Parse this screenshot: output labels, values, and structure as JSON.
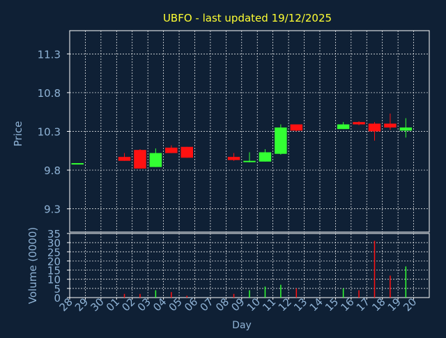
{
  "colors": {
    "background": "#0f2035",
    "title": "#ffff33",
    "axis_text": "#8fb3d6",
    "grid": "#ffffff",
    "up": "#33ff33",
    "down": "#ff1111"
  },
  "chart_data": [
    {
      "type": "candlestick",
      "title": "UBFO - last updated 19/12/2025",
      "ylabel": "Price",
      "ylim": [
        9.0,
        11.6
      ],
      "yticks": [
        "11.3",
        "10.8",
        "10.3",
        "9.8",
        "9.3"
      ],
      "ytick_values": [
        11.3,
        10.8,
        10.3,
        9.8,
        9.3
      ],
      "grid": true,
      "x": [
        "28",
        "29",
        "30",
        "01",
        "02",
        "03",
        "04",
        "05",
        "06",
        "07",
        "08",
        "09",
        "10",
        "11",
        "12",
        "13",
        "14",
        "15",
        "16",
        "17",
        "18",
        "19",
        "20"
      ],
      "candles": [
        {
          "day": "28",
          "open": 9.89,
          "high": 9.89,
          "low": 9.89,
          "close": 9.89,
          "dir": "up"
        },
        {
          "day": "01",
          "open": 9.97,
          "high": 10.02,
          "low": 9.92,
          "close": 9.92,
          "dir": "down"
        },
        {
          "day": "02",
          "open": 10.06,
          "high": 10.07,
          "low": 9.82,
          "close": 9.82,
          "dir": "down"
        },
        {
          "day": "03",
          "open": 9.84,
          "high": 10.08,
          "low": 9.84,
          "close": 10.02,
          "dir": "up"
        },
        {
          "day": "04",
          "open": 10.09,
          "high": 10.12,
          "low": 10.02,
          "close": 10.02,
          "dir": "down"
        },
        {
          "day": "05",
          "open": 10.1,
          "high": 10.1,
          "low": 9.96,
          "close": 9.96,
          "dir": "down"
        },
        {
          "day": "08",
          "open": 9.97,
          "high": 10.02,
          "low": 9.92,
          "close": 9.93,
          "dir": "down"
        },
        {
          "day": "09",
          "open": 9.91,
          "high": 10.03,
          "low": 9.9,
          "close": 9.92,
          "dir": "up"
        },
        {
          "day": "10",
          "open": 9.91,
          "high": 10.07,
          "low": 9.91,
          "close": 10.03,
          "dir": "up"
        },
        {
          "day": "11",
          "open": 10.01,
          "high": 10.39,
          "low": 10.0,
          "close": 10.35,
          "dir": "up"
        },
        {
          "day": "12",
          "open": 10.39,
          "high": 10.39,
          "low": 10.3,
          "close": 10.31,
          "dir": "down"
        },
        {
          "day": "15",
          "open": 10.33,
          "high": 10.42,
          "low": 10.33,
          "close": 10.39,
          "dir": "up"
        },
        {
          "day": "16",
          "open": 10.42,
          "high": 10.43,
          "low": 10.38,
          "close": 10.39,
          "dir": "down"
        },
        {
          "day": "17",
          "open": 10.4,
          "high": 10.42,
          "low": 10.18,
          "close": 10.3,
          "dir": "down"
        },
        {
          "day": "18",
          "open": 10.4,
          "high": 10.53,
          "low": 10.32,
          "close": 10.35,
          "dir": "down"
        },
        {
          "day": "19",
          "open": 10.31,
          "high": 10.47,
          "low": 10.22,
          "close": 10.35,
          "dir": "up"
        }
      ]
    },
    {
      "type": "bar",
      "ylabel": "Volume (0000)",
      "xlabel": "Day",
      "ylim": [
        0,
        35
      ],
      "yticks": [
        "35",
        "30",
        "25",
        "20",
        "15",
        "10",
        "5",
        "0"
      ],
      "ytick_values": [
        35,
        30,
        25,
        20,
        15,
        10,
        5,
        0
      ],
      "grid": true,
      "categories": [
        "28",
        "29",
        "30",
        "01",
        "02",
        "03",
        "04",
        "05",
        "06",
        "07",
        "08",
        "09",
        "10",
        "11",
        "12",
        "13",
        "14",
        "15",
        "16",
        "17",
        "18",
        "19",
        "20"
      ],
      "bars": [
        {
          "day": "01",
          "value": 2,
          "dir": "down"
        },
        {
          "day": "02",
          "value": 2,
          "dir": "down"
        },
        {
          "day": "03",
          "value": 4,
          "dir": "up"
        },
        {
          "day": "04",
          "value": 3,
          "dir": "down"
        },
        {
          "day": "05",
          "value": 1,
          "dir": "down"
        },
        {
          "day": "08",
          "value": 2,
          "dir": "down"
        },
        {
          "day": "09",
          "value": 4,
          "dir": "up"
        },
        {
          "day": "10",
          "value": 6,
          "dir": "up"
        },
        {
          "day": "11",
          "value": 7,
          "dir": "up"
        },
        {
          "day": "12",
          "value": 5,
          "dir": "down"
        },
        {
          "day": "15",
          "value": 5,
          "dir": "up"
        },
        {
          "day": "16",
          "value": 4,
          "dir": "down"
        },
        {
          "day": "17",
          "value": 31,
          "dir": "down"
        },
        {
          "day": "18",
          "value": 12,
          "dir": "down"
        },
        {
          "day": "19",
          "value": 17,
          "dir": "up"
        }
      ]
    }
  ]
}
